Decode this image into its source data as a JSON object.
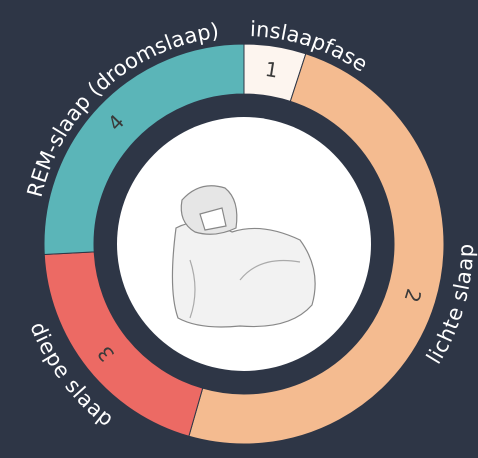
{
  "segments": [
    {
      "number": "1",
      "label": "inslaapfase",
      "color": "#fdf5ef"
    },
    {
      "number": "2",
      "label": "lichte slaap",
      "color": "#f4bb90"
    },
    {
      "number": "3",
      "label": "diepe slaap",
      "color": "#ec6a64"
    },
    {
      "number": "4",
      "label": "REM-slaap (droomslaap)",
      "color": "#5bb5b8"
    }
  ]
}
